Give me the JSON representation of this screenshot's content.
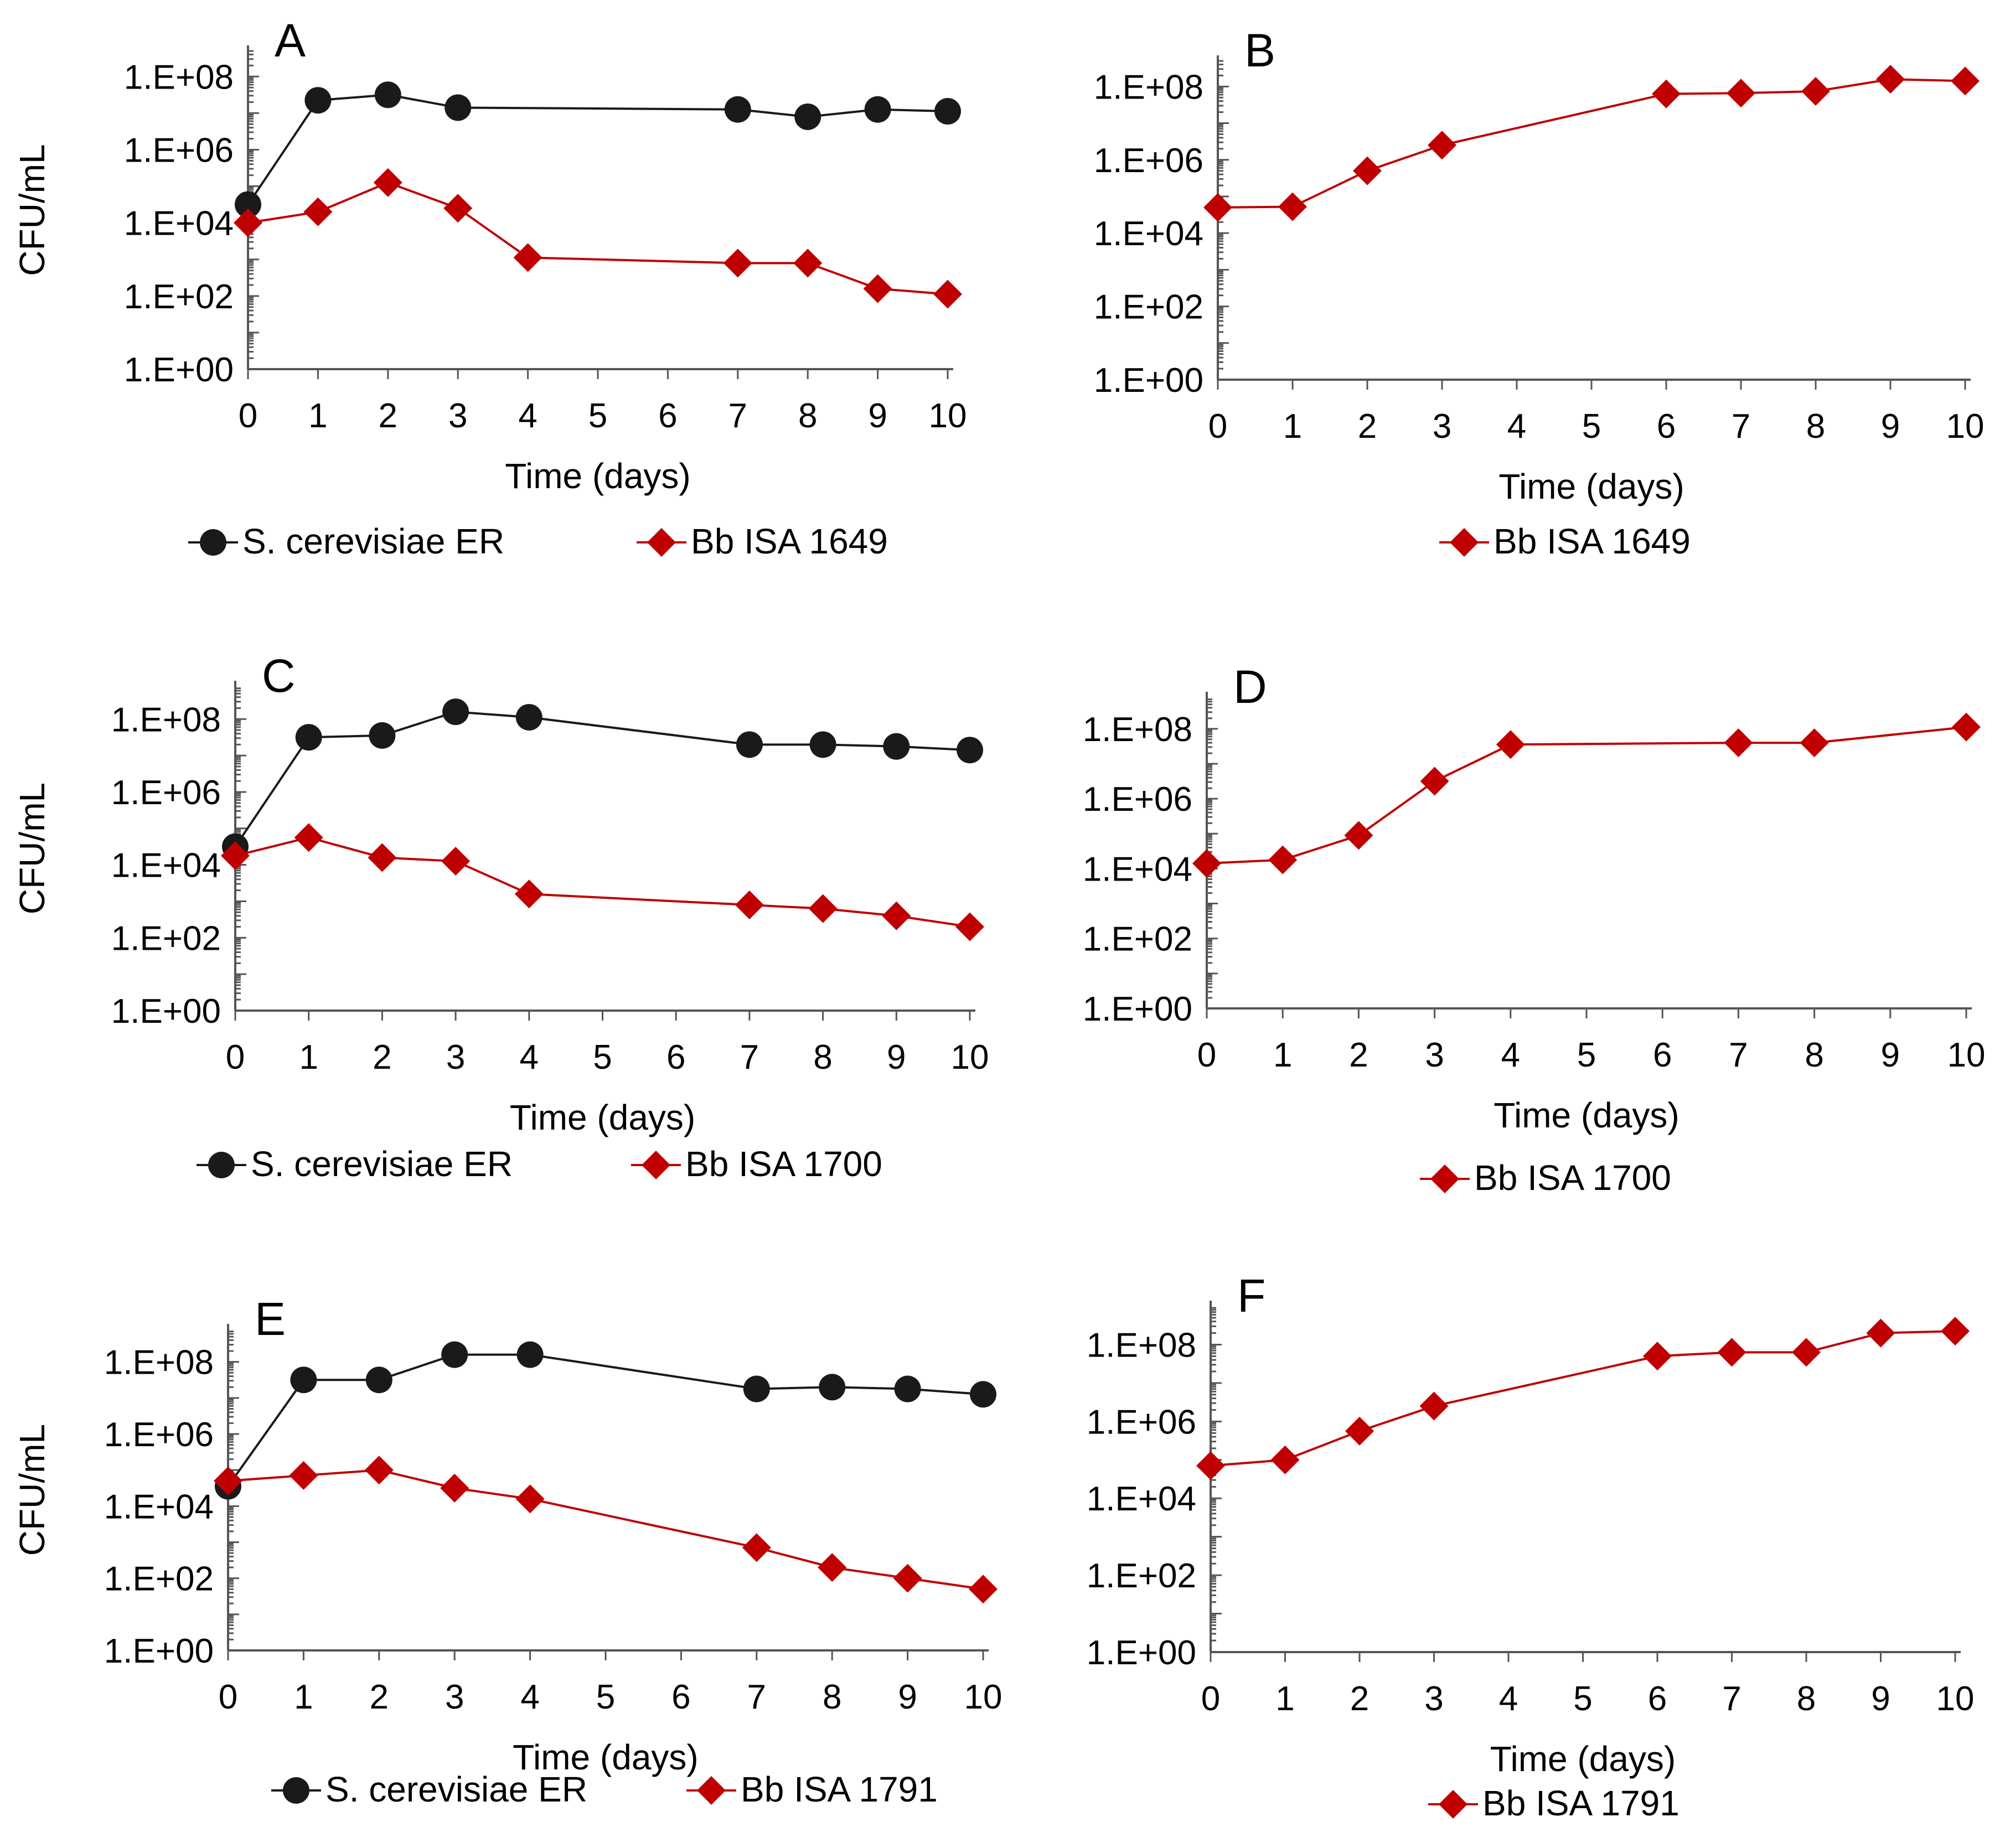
{
  "colors": {
    "black_series": "#1a1a1a",
    "red_series": "#c00000",
    "axis": "#555555"
  },
  "chart_data": [
    {
      "id": "A",
      "type": "line",
      "panel_label": "A",
      "xlabel": "Time (days)",
      "ylabel": "CFU/mL",
      "x_ticks": [
        "0",
        "1",
        "2",
        "3",
        "4",
        "5",
        "6",
        "7",
        "8",
        "9",
        "10"
      ],
      "y_ticks": [
        "1.E+00",
        "1.E+02",
        "1.E+04",
        "1.E+06",
        "1.E+08"
      ],
      "xlim": [
        0,
        10
      ],
      "ylim_log10": [
        0,
        8.7
      ],
      "y_scale": "log",
      "legend": [
        "S. cerevisiae ER",
        "Bb ISA 1649"
      ],
      "series": [
        {
          "name": "S. cerevisiae ER",
          "marker": "circle",
          "color": "#1a1a1a",
          "x": [
            0,
            1,
            2,
            3,
            7,
            8,
            9,
            10
          ],
          "log10_y": [
            4.5,
            7.35,
            7.5,
            7.15,
            7.1,
            6.9,
            7.1,
            7.05
          ]
        },
        {
          "name": "Bb ISA 1649",
          "marker": "diamond",
          "color": "#c00000",
          "x": [
            0,
            1,
            2,
            3,
            4,
            7,
            8,
            9,
            10
          ],
          "log10_y": [
            4.0,
            4.3,
            5.1,
            4.4,
            3.05,
            2.9,
            2.9,
            2.2,
            2.05
          ]
        }
      ]
    },
    {
      "id": "B",
      "type": "line",
      "panel_label": "B",
      "xlabel": "Time (days)",
      "ylabel": "",
      "x_ticks": [
        "0",
        "1",
        "2",
        "3",
        "4",
        "5",
        "6",
        "7",
        "8",
        "9",
        "10"
      ],
      "y_ticks": [
        "1.E+00",
        "1.E+02",
        "1.E+04",
        "1.E+06",
        "1.E+08"
      ],
      "xlim": [
        0,
        10
      ],
      "ylim_log10": [
        0,
        8.7
      ],
      "y_scale": "log",
      "legend": [
        "Bb ISA 1649"
      ],
      "series": [
        {
          "name": "Bb ISA 1649",
          "marker": "diamond",
          "color": "#c00000",
          "x": [
            0,
            1,
            2,
            3,
            6,
            7,
            8,
            9,
            10
          ],
          "log10_y": [
            4.7,
            4.72,
            5.7,
            6.4,
            7.8,
            7.82,
            7.87,
            8.2,
            8.15
          ]
        }
      ]
    },
    {
      "id": "C",
      "type": "line",
      "panel_label": "C",
      "xlabel": "Time (days)",
      "ylabel": "CFU/mL",
      "x_ticks": [
        "0",
        "1",
        "2",
        "3",
        "4",
        "5",
        "6",
        "7",
        "8",
        "9",
        "10"
      ],
      "y_ticks": [
        "1.E+00",
        "1.E+02",
        "1.E+04",
        "1.E+06",
        "1.E+08"
      ],
      "xlim": [
        0,
        10
      ],
      "ylim_log10": [
        0,
        8.9
      ],
      "y_scale": "log",
      "legend": [
        "S. cerevisiae ER",
        "Bb ISA 1700"
      ],
      "series": [
        {
          "name": "S. cerevisiae ER",
          "marker": "circle",
          "color": "#1a1a1a",
          "x": [
            0,
            1,
            2,
            3,
            4,
            7,
            8,
            9,
            10
          ],
          "log10_y": [
            4.5,
            7.5,
            7.55,
            8.2,
            8.05,
            7.3,
            7.3,
            7.25,
            7.15
          ]
        },
        {
          "name": "Bb ISA 1700",
          "marker": "diamond",
          "color": "#c00000",
          "x": [
            0,
            1,
            2,
            3,
            4,
            7,
            8,
            9,
            10
          ],
          "log10_y": [
            4.25,
            4.75,
            4.2,
            4.1,
            3.2,
            2.9,
            2.8,
            2.6,
            2.3
          ]
        }
      ]
    },
    {
      "id": "D",
      "type": "line",
      "panel_label": "D",
      "xlabel": "Time (days)",
      "ylabel": "",
      "x_ticks": [
        "0",
        "1",
        "2",
        "3",
        "4",
        "5",
        "6",
        "7",
        "8",
        "9",
        "10"
      ],
      "y_ticks": [
        "1.E+00",
        "1.E+02",
        "1.E+04",
        "1.E+06",
        "1.E+08"
      ],
      "xlim": [
        0,
        10
      ],
      "ylim_log10": [
        0,
        8.9
      ],
      "y_scale": "log",
      "legend": [
        "Bb ISA 1700"
      ],
      "series": [
        {
          "name": "Bb ISA 1700",
          "marker": "diamond",
          "color": "#c00000",
          "x": [
            0,
            1,
            2,
            4,
            3,
            7,
            8,
            10
          ],
          "log10_y": [
            4.15,
            4.25,
            4.95,
            7.55,
            6.5,
            7.6,
            7.6,
            8.05
          ]
        }
      ]
    },
    {
      "id": "E",
      "type": "line",
      "panel_label": "E",
      "xlabel": "Time (days)",
      "ylabel": "CFU/mL",
      "x_ticks": [
        "0",
        "1",
        "2",
        "3",
        "4",
        "5",
        "6",
        "7",
        "8",
        "9",
        "10"
      ],
      "y_ticks": [
        "1.E+00",
        "1.E+02",
        "1.E+04",
        "1.E+06",
        "1.E+08"
      ],
      "xlim": [
        0,
        10
      ],
      "ylim_log10": [
        0,
        8.9
      ],
      "y_scale": "log",
      "legend": [
        "S. cerevisiae ER",
        "Bb ISA 1791"
      ],
      "series": [
        {
          "name": "S. cerevisiae ER",
          "marker": "circle",
          "color": "#1a1a1a",
          "x": [
            0,
            1,
            2,
            3,
            4,
            7,
            8,
            9,
            10
          ],
          "log10_y": [
            4.55,
            7.5,
            7.5,
            8.2,
            8.2,
            7.25,
            7.3,
            7.25,
            7.1
          ]
        },
        {
          "name": "Bb ISA 1791",
          "marker": "diamond",
          "color": "#c00000",
          "x": [
            0,
            1,
            2,
            3,
            4,
            7,
            8,
            9,
            10
          ],
          "log10_y": [
            4.7,
            4.85,
            5.0,
            4.5,
            4.2,
            2.85,
            2.3,
            2.0,
            1.7
          ]
        }
      ]
    },
    {
      "id": "F",
      "type": "line",
      "panel_label": "F",
      "xlabel": "Time (days)",
      "ylabel": "",
      "x_ticks": [
        "0",
        "1",
        "2",
        "3",
        "4",
        "5",
        "6",
        "7",
        "8",
        "9",
        "10"
      ],
      "y_ticks": [
        "1.E+00",
        "1.E+02",
        "1.E+04",
        "1.E+06",
        "1.E+08"
      ],
      "xlim": [
        0,
        10
      ],
      "ylim_log10": [
        0,
        9.0
      ],
      "y_scale": "log",
      "legend": [
        "Bb ISA 1791"
      ],
      "series": [
        {
          "name": "Bb ISA 1791",
          "marker": "diamond",
          "color": "#c00000",
          "x": [
            0,
            1,
            2,
            3,
            6,
            7,
            8,
            9,
            10
          ],
          "log10_y": [
            4.85,
            5.0,
            5.75,
            6.4,
            7.7,
            7.8,
            7.8,
            8.3,
            8.35
          ]
        }
      ]
    }
  ]
}
